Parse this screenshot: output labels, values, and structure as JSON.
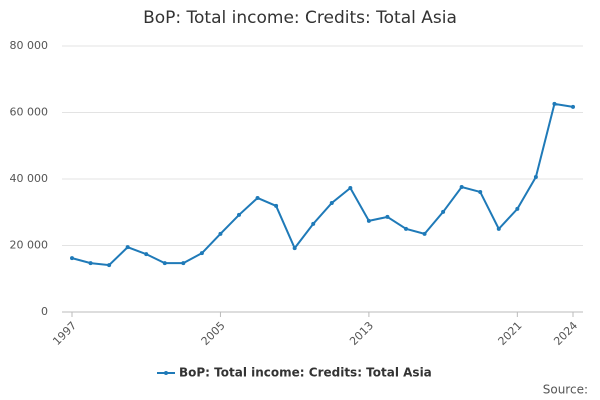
{
  "chart_data": {
    "type": "line",
    "title": "BoP: Total income: Credits: Total Asia",
    "x": [
      1997,
      1998,
      1999,
      2000,
      2001,
      2002,
      2003,
      2004,
      2005,
      2006,
      2007,
      2008,
      2009,
      2010,
      2011,
      2012,
      2013,
      2014,
      2015,
      2016,
      2017,
      2018,
      2019,
      2020,
      2021,
      2022,
      2023,
      2024
    ],
    "series": [
      {
        "name": "BoP: Total income: Credits: Total Asia",
        "color": "#1f7ab8",
        "values": [
          16200,
          14700,
          14100,
          19500,
          17400,
          14700,
          14700,
          17700,
          23500,
          29200,
          34300,
          31900,
          19200,
          26500,
          32800,
          37300,
          27400,
          28600,
          25000,
          23500,
          30100,
          37600,
          36100,
          25000,
          31000,
          40600,
          62600,
          61700
        ]
      }
    ],
    "xlim": [
      1997,
      2024
    ],
    "xticks": [
      1997,
      2005,
      2013,
      2021,
      2024
    ],
    "ylim": [
      0,
      80000
    ],
    "yticks": [
      0,
      {
        "value": 20000,
        "label": "20 000"
      },
      {
        "value": 40000,
        "label": "40 000"
      },
      {
        "value": 60000,
        "label": "60 000"
      },
      {
        "value": 80000,
        "label": "80 000"
      }
    ],
    "grid": true,
    "legend": "bottom",
    "source": "Source:"
  }
}
